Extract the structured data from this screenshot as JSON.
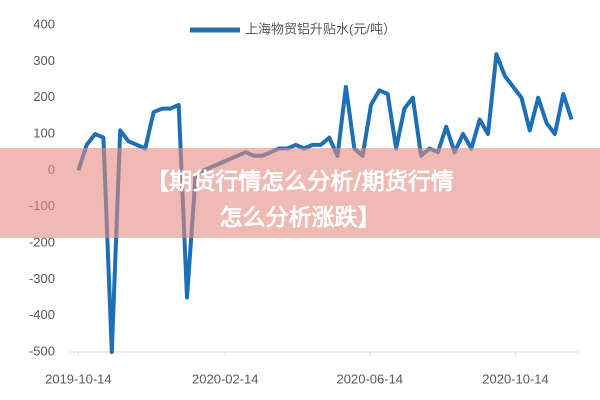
{
  "chart_data": {
    "type": "line",
    "legend_label": "上海物贸铝升贴水(元/吨）",
    "annotation": "【期货行情怎么分析/期货行情怎么分析涨跌】",
    "color": "#1f6fb6",
    "grid": false,
    "x": [
      "2019-10-14",
      "2019-10-21",
      "2019-10-28",
      "2019-11-04",
      "2019-11-11",
      "2019-11-18",
      "2019-11-25",
      "2019-12-02",
      "2019-12-09",
      "2019-12-16",
      "2019-12-23",
      "2019-12-30",
      "2020-01-06",
      "2020-01-13",
      "2020-01-20",
      "2020-01-27",
      "2020-02-03",
      "2020-02-10",
      "2020-02-17",
      "2020-02-24",
      "2020-03-02",
      "2020-03-09",
      "2020-03-16",
      "2020-03-23",
      "2020-03-30",
      "2020-04-06",
      "2020-04-13",
      "2020-04-20",
      "2020-04-27",
      "2020-05-04",
      "2020-05-11",
      "2020-05-18",
      "2020-05-25",
      "2020-06-01",
      "2020-06-08",
      "2020-06-15",
      "2020-06-22",
      "2020-06-29",
      "2020-07-06",
      "2020-07-13",
      "2020-07-20",
      "2020-07-27",
      "2020-08-03",
      "2020-08-10",
      "2020-08-17",
      "2020-08-24",
      "2020-08-31",
      "2020-09-07",
      "2020-09-14",
      "2020-09-21",
      "2020-09-28",
      "2020-10-05",
      "2020-10-12",
      "2020-10-19",
      "2020-10-26",
      "2020-11-02",
      "2020-11-09",
      "2020-11-16",
      "2020-11-23",
      "2020-11-30"
    ],
    "values": [
      0,
      70,
      100,
      90,
      -500,
      110,
      80,
      70,
      60,
      160,
      170,
      170,
      180,
      -350,
      -20,
      0,
      10,
      20,
      30,
      40,
      50,
      40,
      40,
      50,
      60,
      60,
      70,
      60,
      70,
      70,
      90,
      40,
      230,
      60,
      40,
      180,
      220,
      210,
      60,
      170,
      200,
      40,
      60,
      50,
      120,
      50,
      100,
      60,
      140,
      100,
      320,
      260,
      230,
      200,
      110,
      200,
      130,
      100,
      210,
      140
    ],
    "xlim": [
      "2019-10-07",
      "2020-12-07"
    ],
    "xticks": [
      "2019-10-14",
      "2020-02-14",
      "2020-06-14",
      "2020-10-14"
    ],
    "ylim": [
      -500,
      400
    ],
    "yticks": [
      -500,
      -400,
      -300,
      -200,
      -100,
      0,
      100,
      200,
      300,
      400
    ]
  }
}
